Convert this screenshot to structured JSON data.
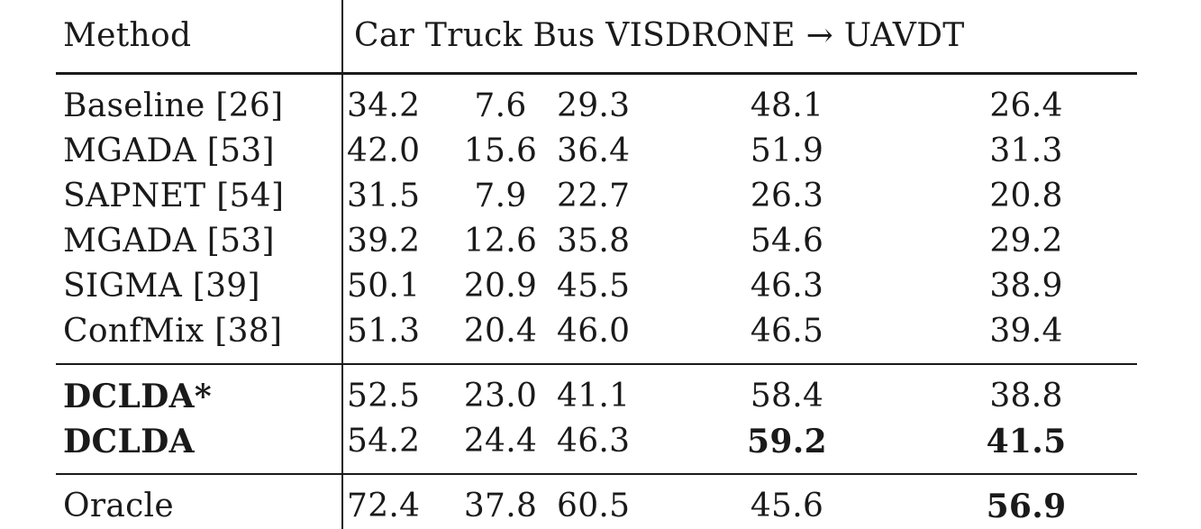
{
  "table": {
    "header": {
      "method": "Method",
      "columns": [
        "Car",
        "Truck",
        "Bus",
        "VISDRONE",
        "→",
        "UAVDT"
      ]
    },
    "groups": [
      [
        {
          "method": "Baseline [26]",
          "car": "34.2",
          "truck": "7.6",
          "bus": "29.3",
          "visdrone": "48.1",
          "uavdt": "26.4"
        },
        {
          "method": "MGADA [53]",
          "car": "42.0",
          "truck": "15.6",
          "bus": "36.4",
          "visdrone": "51.9",
          "uavdt": "31.3"
        },
        {
          "method": "SAPNET [54]",
          "car": "31.5",
          "truck": "7.9",
          "bus": "22.7",
          "visdrone": "26.3",
          "uavdt": "20.8"
        },
        {
          "method": "MGADA [53]",
          "car": "39.2",
          "truck": "12.6",
          "bus": "35.8",
          "visdrone": "54.6",
          "uavdt": "29.2"
        },
        {
          "method": "SIGMA [39]",
          "car": "50.1",
          "truck": "20.9",
          "bus": "45.5",
          "visdrone": "46.3",
          "uavdt": "38.9"
        },
        {
          "method": "ConfMix [38]",
          "car": "51.3",
          "truck": "20.4",
          "bus": "46.0",
          "visdrone": "46.5",
          "uavdt": "39.4"
        }
      ],
      [
        {
          "method": "DCLDA*",
          "car": "52.5",
          "truck": "23.0",
          "bus": "41.1",
          "visdrone": "58.4",
          "uavdt": "38.8"
        },
        {
          "method": "DCLDA",
          "car": "54.2",
          "truck": "24.4",
          "bus": "46.3",
          "visdrone": "59.2",
          "uavdt": "41.5"
        }
      ],
      [
        {
          "method": "Oracle",
          "car": "72.4",
          "truck": "37.8",
          "bus": "60.5",
          "visdrone": "45.6",
          "uavdt": "56.9"
        }
      ]
    ]
  }
}
